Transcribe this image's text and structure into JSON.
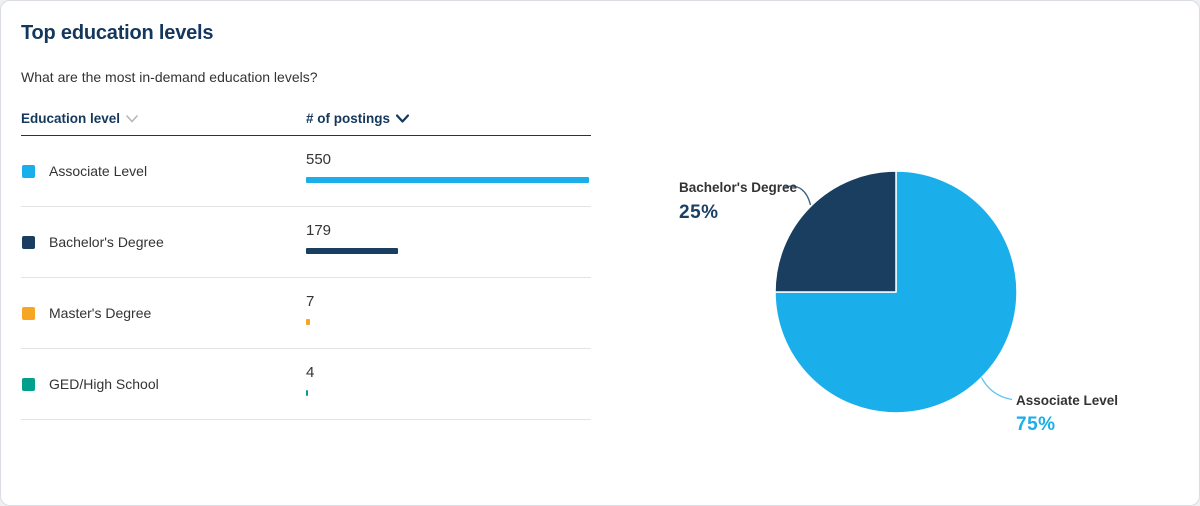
{
  "card": {
    "title": "Top education levels",
    "subtitle": "What are the most in-demand education levels?"
  },
  "table": {
    "columns": [
      {
        "label": "Education level",
        "sort_icon": "chevron-down-icon"
      },
      {
        "label": "# of postings",
        "sort_icon": "chevron-down-icon"
      }
    ],
    "rows": [
      {
        "label": "Associate Level",
        "value": 550,
        "color": "#1aaeea"
      },
      {
        "label": "Bachelor's Degree",
        "value": 179,
        "color": "#1a3e5f"
      },
      {
        "label": "Master's Degree",
        "value": 7,
        "color": "#f6a623"
      },
      {
        "label": "GED/High School",
        "value": 4,
        "color": "#00a08d"
      }
    ],
    "max_value": 550
  },
  "chart_data": [
    {
      "type": "bar",
      "orientation": "horizontal",
      "title": "Top education levels",
      "columns": [
        "Education level",
        "# of postings"
      ],
      "categories": [
        "Associate Level",
        "Bachelor's Degree",
        "Master's Degree",
        "GED/High School"
      ],
      "values": [
        550,
        179,
        7,
        4
      ],
      "colors": [
        "#1aaeea",
        "#1a3e5f",
        "#f6a623",
        "#00a08d"
      ],
      "xlim": [
        0,
        550
      ],
      "grid": false
    },
    {
      "type": "pie",
      "start_angle_deg": -90,
      "direction": "clockwise",
      "labels_outside": true,
      "slices": [
        {
          "label": "Associate Level",
          "percent": 75,
          "percent_label": "75%",
          "color": "#1aaeea"
        },
        {
          "label": "Bachelor's Degree",
          "percent": 25,
          "percent_label": "25%",
          "color": "#1a3e5f"
        }
      ]
    }
  ],
  "colors": {
    "brand_navy": "#14375d",
    "accent_light_blue": "#1aaeea",
    "orange": "#f6a623",
    "teal": "#00a08d",
    "divider": "#e4e4e4",
    "text_dark": "#333333"
  }
}
